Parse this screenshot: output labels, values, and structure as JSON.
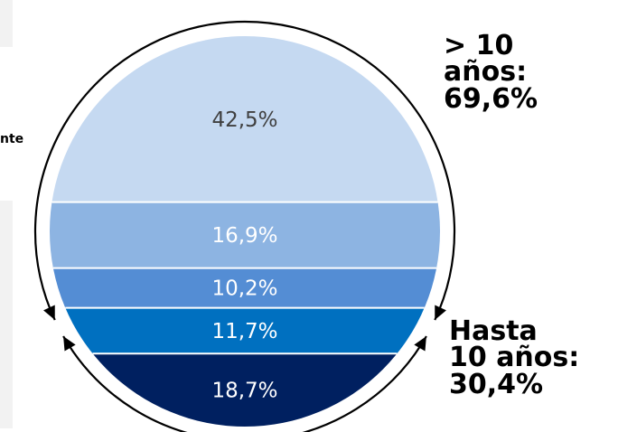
{
  "chart_data": {
    "type": "stacked-circle",
    "segments": [
      {
        "label": "42,5%",
        "value": 42.5,
        "color": "#c5d9f1"
      },
      {
        "label": "16,9%",
        "value": 16.9,
        "color": "#8db4e2"
      },
      {
        "label": "10,2%",
        "value": 10.2,
        "color": "#548dd4"
      },
      {
        "label": "11,7%",
        "value": 11.7,
        "color": "#0070c0"
      },
      {
        "label": "18,7%",
        "value": 18.7,
        "color": "#002060"
      }
    ],
    "groups": [
      {
        "label": "> 10\naños:\n69,6%",
        "value": 69.6
      },
      {
        "label": "Hasta\n10 años:\n30,4%",
        "value": 30.4
      }
    ],
    "cut_label": "nte"
  }
}
